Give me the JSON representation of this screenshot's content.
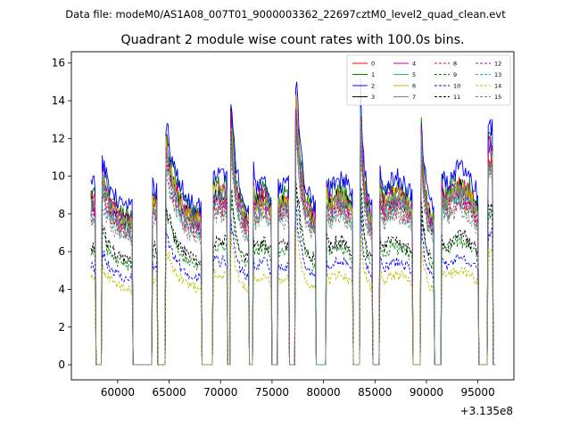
{
  "chart_data": {
    "type": "line",
    "suptitle": "Data file: modeM0/AS1A08_007T01_9000003362_22697cztM0_level2_quad_clean.evt",
    "title": "Quadrant 2 module wise count rates with 100.0s bins.",
    "xlabel": "",
    "ylabel": "",
    "x_offset_label": "+3.135e8",
    "xlim": [
      55500,
      98500
    ],
    "ylim": [
      -0.8,
      16.6
    ],
    "xticks": [
      60000,
      65000,
      70000,
      75000,
      80000,
      85000,
      90000,
      95000
    ],
    "xtick_labels": [
      "60000",
      "65000",
      "70000",
      "75000",
      "80000",
      "85000",
      "90000",
      "95000"
    ],
    "yticks": [
      0,
      2,
      4,
      6,
      8,
      10,
      12,
      14,
      16
    ],
    "ytick_labels": [
      "0",
      "2",
      "4",
      "6",
      "8",
      "10",
      "12",
      "14",
      "16"
    ],
    "legend_position": "upper right",
    "segments": [
      {
        "start": 57400,
        "end": 57800,
        "peak": 0.95,
        "shape": "flat"
      },
      {
        "start": 58500,
        "end": 61400,
        "peak": 1.1,
        "shape": "decay"
      },
      {
        "start": 63400,
        "end": 63800,
        "peak": 0.95,
        "shape": "flat"
      },
      {
        "start": 64700,
        "end": 68100,
        "peak": 1.3,
        "shape": "decay"
      },
      {
        "start": 69300,
        "end": 70600,
        "peak": 1.0,
        "shape": "flat"
      },
      {
        "start": 71000,
        "end": 72700,
        "peak": 1.45,
        "shape": "decay"
      },
      {
        "start": 73200,
        "end": 74900,
        "peak": 1.0,
        "shape": "hump"
      },
      {
        "start": 75600,
        "end": 76600,
        "peak": 0.95,
        "shape": "flat"
      },
      {
        "start": 77300,
        "end": 79200,
        "peak": 1.55,
        "shape": "decay"
      },
      {
        "start": 80300,
        "end": 82800,
        "peak": 1.0,
        "shape": "hump"
      },
      {
        "start": 83600,
        "end": 84700,
        "peak": 1.5,
        "shape": "decay"
      },
      {
        "start": 85500,
        "end": 88600,
        "peak": 1.0,
        "shape": "hump"
      },
      {
        "start": 89500,
        "end": 90700,
        "peak": 1.35,
        "shape": "decay"
      },
      {
        "start": 91500,
        "end": 95000,
        "peak": 1.05,
        "shape": "hump"
      },
      {
        "start": 96000,
        "end": 96400,
        "peak": 1.25,
        "shape": "flat"
      }
    ],
    "series": [
      {
        "name": "0",
        "color": "#ff0000",
        "dash": "solid",
        "base": 9.2
      },
      {
        "name": "1",
        "color": "#008000",
        "dash": "solid",
        "base": 9.5
      },
      {
        "name": "2",
        "color": "#0000ff",
        "dash": "solid",
        "base": 10.0
      },
      {
        "name": "3",
        "color": "#000000",
        "dash": "solid",
        "base": 9.0
      },
      {
        "name": "4",
        "color": "#bf00bf",
        "dash": "solid",
        "base": 9.1
      },
      {
        "name": "5",
        "color": "#1abc9c",
        "dash": "solid",
        "base": 8.8
      },
      {
        "name": "6",
        "color": "#bfbf00",
        "dash": "solid",
        "base": 9.0
      },
      {
        "name": "7",
        "color": "#808080",
        "dash": "solid",
        "base": 8.7
      },
      {
        "name": "8",
        "color": "#ff0000",
        "dash": "dashed",
        "base": 8.3
      },
      {
        "name": "9",
        "color": "#008000",
        "dash": "dashed",
        "base": 6.3
      },
      {
        "name": "10",
        "color": "#0000ff",
        "dash": "dashed",
        "base": 5.5
      },
      {
        "name": "11",
        "color": "#000000",
        "dash": "dashed",
        "base": 6.6
      },
      {
        "name": "12",
        "color": "#bf00bf",
        "dash": "dashed",
        "base": 8.5
      },
      {
        "name": "13",
        "color": "#1abc9c",
        "dash": "dashed",
        "base": 8.2
      },
      {
        "name": "14",
        "color": "#bfbf00",
        "dash": "dashed",
        "base": 4.8
      },
      {
        "name": "15",
        "color": "#808080",
        "dash": "dashed",
        "base": 8.0
      }
    ]
  }
}
